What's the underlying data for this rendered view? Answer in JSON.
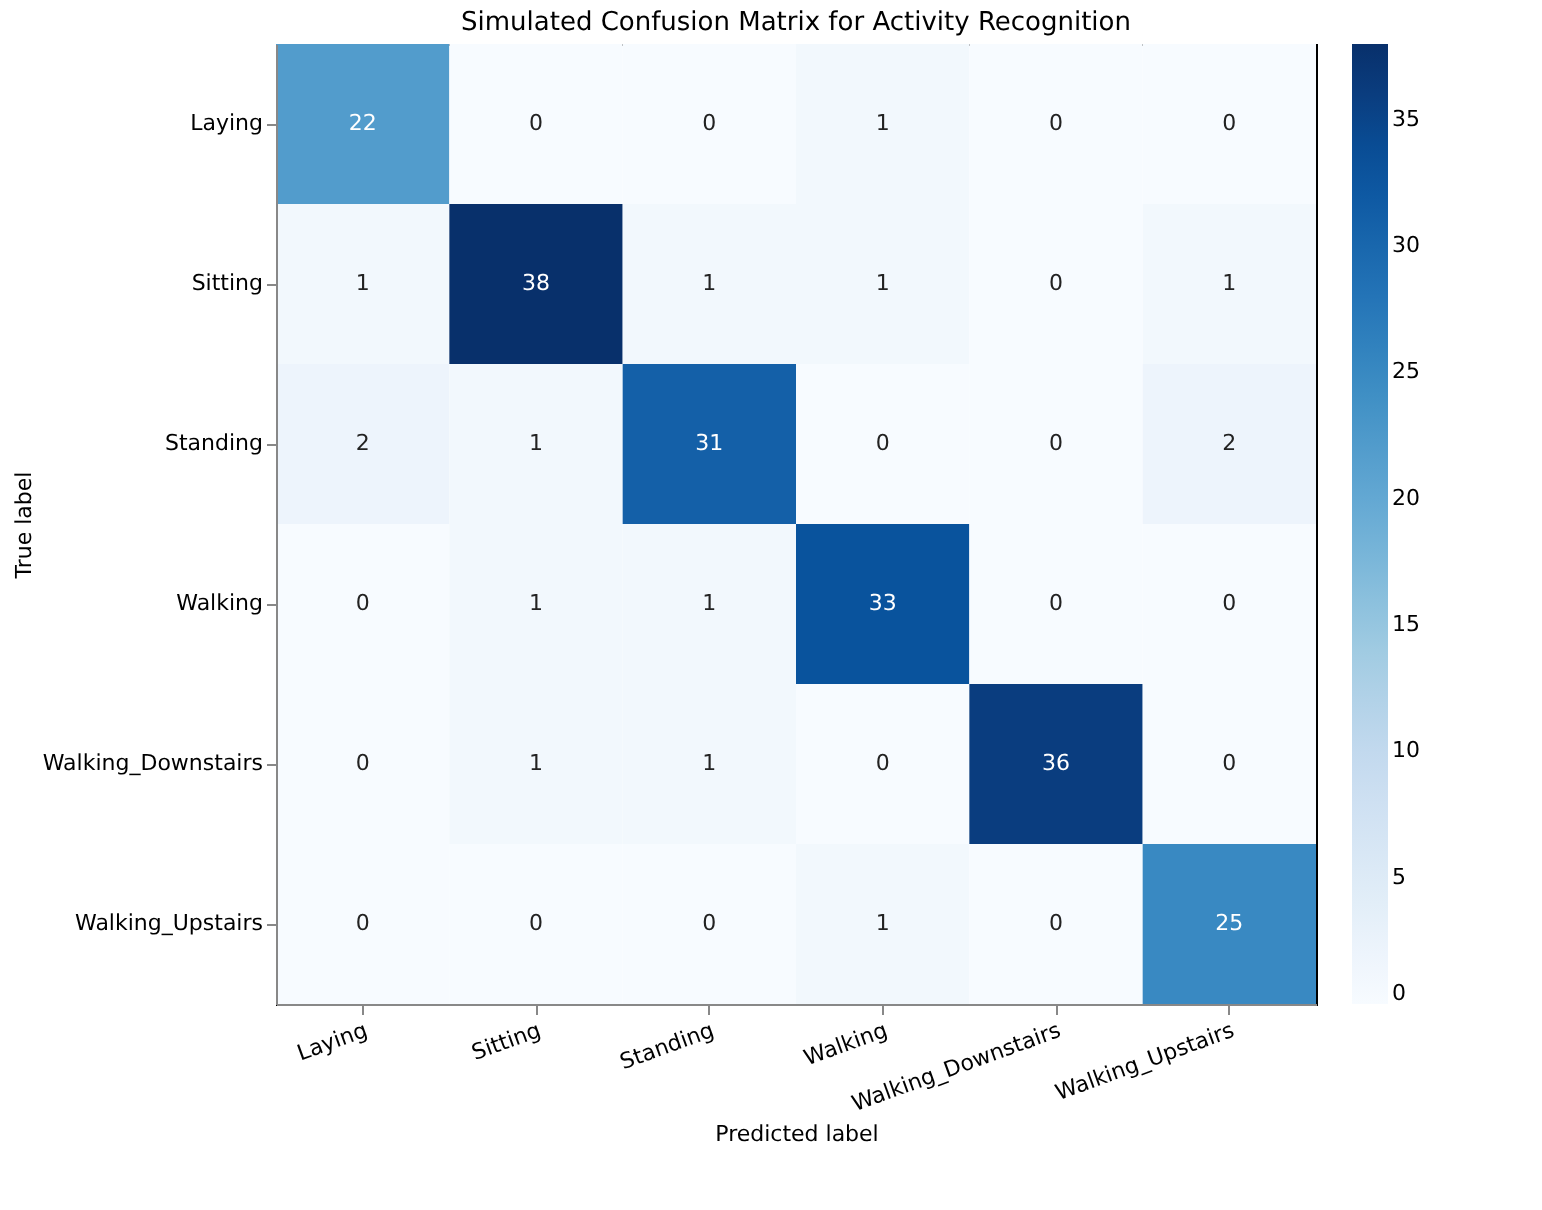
{
  "chart_data": {
    "type": "heatmap",
    "title": "Simulated Confusion Matrix for Activity Recognition",
    "xlabel": "Predicted label",
    "ylabel": "True label",
    "categories": [
      "Laying",
      "Sitting",
      "Standing",
      "Walking",
      "Walking_Downstairs",
      "Walking_Upstairs"
    ],
    "y_categories": [
      "Laying",
      "Sitting",
      "Standing",
      "Walking",
      "Walking_Downstairs",
      "Walking_Upstairs"
    ],
    "cells": [
      [
        22,
        0,
        0,
        1,
        0,
        0
      ],
      [
        1,
        38,
        1,
        1,
        0,
        1
      ],
      [
        2,
        1,
        31,
        0,
        0,
        2
      ],
      [
        0,
        1,
        1,
        33,
        0,
        0
      ],
      [
        0,
        1,
        1,
        0,
        36,
        0
      ],
      [
        0,
        0,
        0,
        1,
        0,
        25
      ]
    ],
    "data_labels": true,
    "clim": [
      0,
      38
    ],
    "cticks": [
      0,
      5,
      10,
      15,
      20,
      25,
      30,
      35
    ]
  }
}
